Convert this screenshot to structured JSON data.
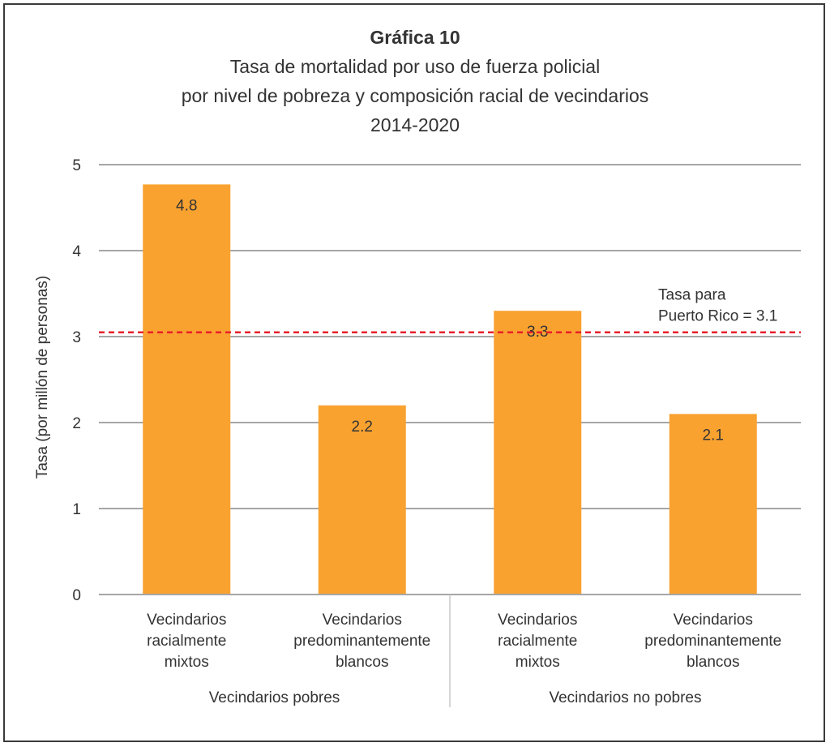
{
  "chart_data": {
    "type": "bar",
    "title": "Gráfica 10",
    "subtitle_lines": [
      "Tasa de mortalidad por uso de fuerza policial",
      "por nivel de pobreza y composición racial de vecindarios",
      "2014-2020"
    ],
    "ylabel": "Tasa (por millón de personas)",
    "ylim": [
      0,
      5
    ],
    "yticks": [
      "0",
      "1",
      "2",
      "3",
      "4",
      "5"
    ],
    "grid": true,
    "categories": [
      [
        "Vecindarios",
        "racialmente",
        "mixtos"
      ],
      [
        "Vecindarios",
        "predominantemente",
        "blancos"
      ],
      [
        "Vecindarios",
        "racialmente",
        "mixtos"
      ],
      [
        "Vecindarios",
        "predominantemente",
        "blancos"
      ]
    ],
    "groups": [
      "Vecindarios pobres",
      "Vecindarios no pobres"
    ],
    "values": [
      4.77,
      2.2,
      3.3,
      2.1
    ],
    "value_labels": [
      "4.8",
      "2.2",
      "3.3",
      "2.1"
    ],
    "reference_line": {
      "value": 3.05,
      "label_lines": [
        "Tasa para",
        "Puerto Rico = 3.1"
      ],
      "color": "#e8202a"
    },
    "bar_color": "#f9a230"
  }
}
